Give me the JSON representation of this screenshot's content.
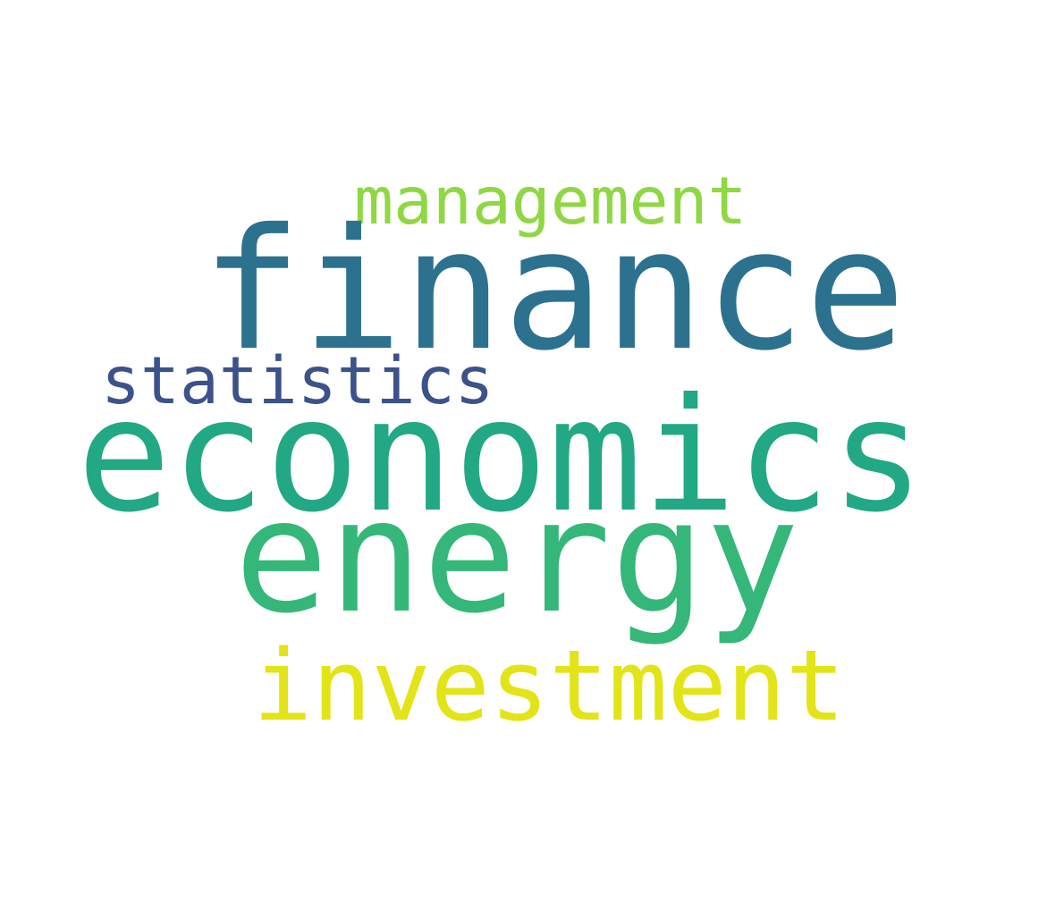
{
  "word_cloud": {
    "words": [
      {
        "text": "management",
        "color": "#8fd744"
      },
      {
        "text": "finance",
        "color": "#2c728e"
      },
      {
        "text": "statistics",
        "color": "#3b528b"
      },
      {
        "text": "economics",
        "color": "#22a884"
      },
      {
        "text": "energy",
        "color": "#35b779"
      },
      {
        "text": "investment",
        "color": "#e2e418"
      }
    ]
  }
}
